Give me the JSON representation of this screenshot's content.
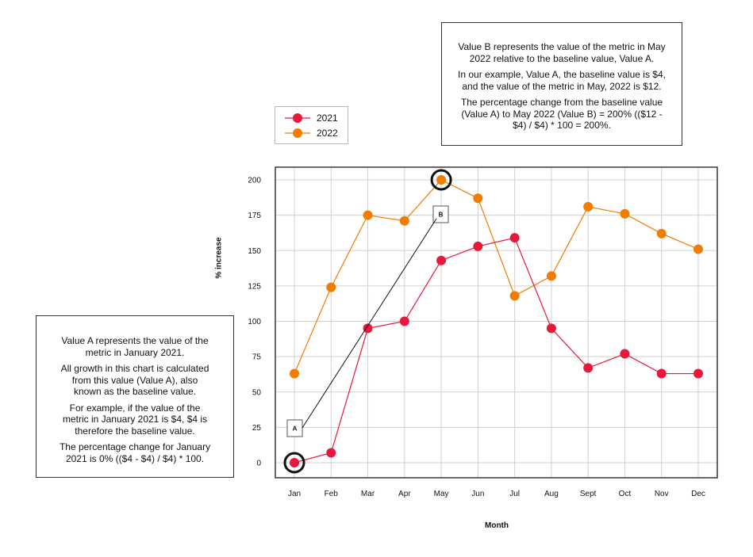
{
  "chart_data": {
    "type": "line",
    "categories": [
      "Jan",
      "Feb",
      "Mar",
      "Apr",
      "May",
      "Jun",
      "Jul",
      "Aug",
      "Sept",
      "Oct",
      "Nov",
      "Dec"
    ],
    "series": [
      {
        "name": "2021",
        "color": "#e8173c",
        "values": [
          0,
          7,
          95,
          100,
          143,
          153,
          159,
          95,
          67,
          77,
          63,
          63
        ]
      },
      {
        "name": "2022",
        "color": "#f07c00",
        "values": [
          63,
          124,
          175,
          171,
          200,
          187,
          118,
          132,
          181,
          176,
          162,
          151
        ]
      }
    ],
    "title": "",
    "xlabel": "Month",
    "ylabel": "% increase",
    "ylim": [
      -10,
      210
    ],
    "yticks": [
      0,
      25,
      50,
      75,
      100,
      125,
      150,
      175,
      200
    ],
    "grid": true,
    "legend_position": "top-left-outside",
    "highlights": [
      {
        "label": "A",
        "series": "2021",
        "category": "Jan",
        "value": 0
      },
      {
        "label": "B",
        "series": "2022",
        "category": "May",
        "value": 200
      }
    ]
  },
  "annotations": {
    "value_b": [
      "Value B represents the value of the metric in May 2022 relative to the baseline value, Value A.",
      "In our example, Value A, the baseline value is $4, and the value of the metric in May, 2022 is $12.",
      "The percentage change from the baseline value (Value A) to May 2022 (Value B) = 200% (($12 - $4) / $4) * 100 = 200%."
    ],
    "value_a": [
      "Value A represents the value of the metric in January 2021.",
      "All growth in this chart is calculated from this value (Value A), also known as the baseline value.",
      "For example, if the value of the metric in January 2021 is $4,  $4 is therefore the baseline value.",
      "The percentage change for January 2021 is 0% (($4 - $4) / $4) * 100."
    ]
  }
}
